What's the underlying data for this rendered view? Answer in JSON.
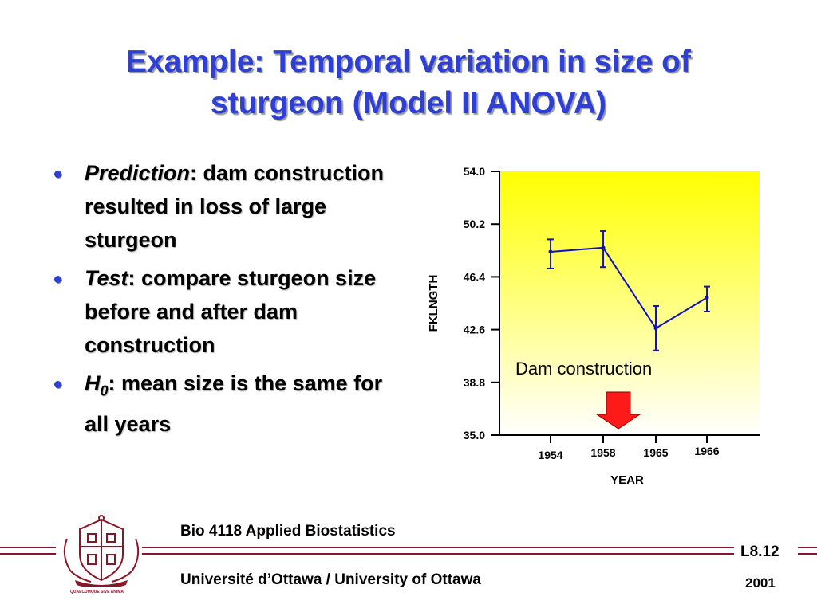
{
  "slide": {
    "title_line1": "Example: Temporal variation in size of",
    "title_line2": "sturgeon (Model II ANOVA)"
  },
  "bullets": [
    {
      "key": "Prediction",
      "text": ": dam construction resulted in loss of large sturgeon"
    },
    {
      "key": "Test",
      "text": ": compare sturgeon size before and after dam construction"
    },
    {
      "key": "H",
      "sub": "0",
      "text": ": mean size is the same for all years"
    }
  ],
  "chart_data": {
    "type": "line",
    "x": [
      "1954",
      "1958",
      "1965",
      "1966"
    ],
    "y": [
      48.2,
      48.5,
      42.7,
      44.9
    ],
    "y_err_low": [
      47.0,
      47.1,
      41.1,
      43.9
    ],
    "y_err_high": [
      49.1,
      49.7,
      44.3,
      45.7
    ],
    "xlabel": "YEAR",
    "ylabel": "FKLNGTH",
    "ylim": [
      35.0,
      54.0
    ],
    "yticks": [
      "35.0",
      "38.8",
      "42.6",
      "46.4",
      "50.2",
      "54.0"
    ],
    "annotation": "Dam construction",
    "colors": {
      "line": "#1010c8",
      "bg_top": "#ffff00",
      "bg_bottom": "#ffffff",
      "arrow": "#ff1a1a"
    }
  },
  "footer": {
    "course": "Bio 4118 Applied Biostatistics",
    "university": "Université d’Ottawa / University of Ottawa",
    "lecture_code": "L8.12",
    "year": "2001",
    "crest_banner": "QUAECUMQUE SIVE ANIMA",
    "brand_color": "#8a1526"
  }
}
